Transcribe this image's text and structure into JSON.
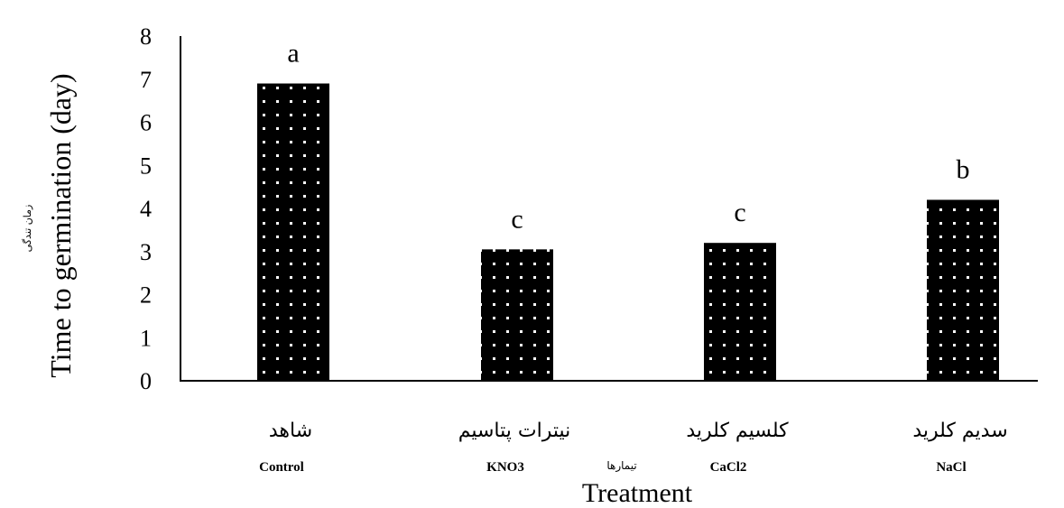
{
  "chart_data": {
    "type": "bar",
    "categories": [
      {
        "fa": "شاهد",
        "en": "Control"
      },
      {
        "fa": "نیترات پتاسیم",
        "en": "KNO3"
      },
      {
        "fa": "کلسیم کلرید",
        "en": "CaCl2"
      },
      {
        "fa": "سدیم کلرید",
        "en": "NaCl"
      }
    ],
    "values": [
      6.9,
      3.05,
      3.2,
      4.2
    ],
    "letters": [
      "a",
      "c",
      "c",
      "b"
    ],
    "ylabel": "Time to germination (day)",
    "ylabel_fa": "زمان تندگی",
    "xlabel": "Treatment",
    "xlabel_fa": "تیمارها",
    "ylim": [
      0,
      8
    ],
    "yticks": [
      "0",
      "1",
      "2",
      "3",
      "4",
      "5",
      "6",
      "7",
      "8"
    ],
    "grid": false,
    "legend": "none",
    "bar_fill": "#000000",
    "dot_color": "#ffffff"
  }
}
